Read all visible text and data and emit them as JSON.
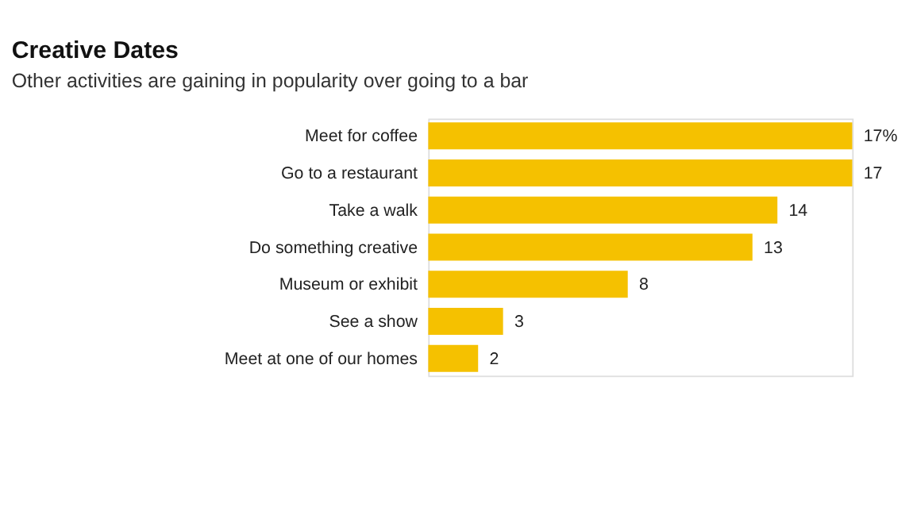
{
  "chart_data": {
    "type": "bar",
    "orientation": "horizontal",
    "title": "Creative Dates",
    "subtitle": "Other activities are gaining in popularity over going to a bar",
    "categories": [
      "Meet for coffee",
      "Go to a restaurant",
      "Take a walk",
      "Do something creative",
      "Museum or exhibit",
      "See a show",
      "Meet at one of our homes"
    ],
    "values": [
      17,
      17,
      14,
      13,
      8,
      3,
      2
    ],
    "value_labels": [
      "17%",
      "17",
      "14",
      "13",
      "8",
      "3",
      "2"
    ],
    "color": "#f5c100"
  }
}
